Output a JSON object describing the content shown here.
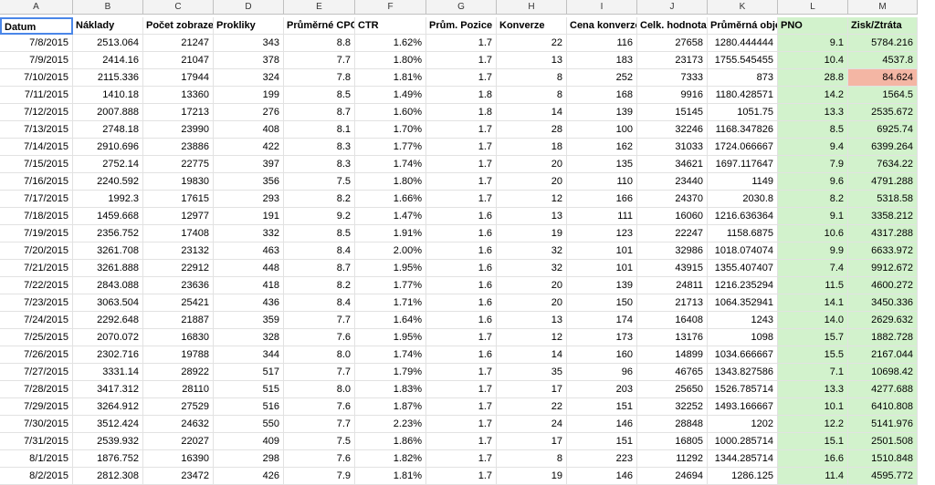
{
  "column_letters": [
    "A",
    "B",
    "C",
    "D",
    "E",
    "F",
    "G",
    "H",
    "I",
    "J",
    "K",
    "L",
    "M"
  ],
  "headers": [
    "Datum",
    "Náklady",
    "Počet zobrazení",
    "Prokliky",
    "Průměrné CPC",
    "CTR",
    "Prům. Pozice",
    "Konverze",
    "Cena konverze",
    "Celk. hodnota konverzí",
    "Průměrná objednávka",
    "PNO",
    "Zisk/Ztráta"
  ],
  "rows": [
    [
      "7/8/2015",
      "2513.064",
      "21247",
      "343",
      "8.8",
      "1.62%",
      "1.7",
      "22",
      "116",
      "27658",
      "1280.444444",
      "9.1",
      "5784.216"
    ],
    [
      "7/9/2015",
      "2414.16",
      "21047",
      "378",
      "7.7",
      "1.80%",
      "1.7",
      "13",
      "183",
      "23173",
      "1755.545455",
      "10.4",
      "4537.8"
    ],
    [
      "7/10/2015",
      "2115.336",
      "17944",
      "324",
      "7.8",
      "1.81%",
      "1.7",
      "8",
      "252",
      "7333",
      "873",
      "28.8",
      "84.624"
    ],
    [
      "7/11/2015",
      "1410.18",
      "13360",
      "199",
      "8.5",
      "1.49%",
      "1.8",
      "8",
      "168",
      "9916",
      "1180.428571",
      "14.2",
      "1564.5"
    ],
    [
      "7/12/2015",
      "2007.888",
      "17213",
      "276",
      "8.7",
      "1.60%",
      "1.8",
      "14",
      "139",
      "15145",
      "1051.75",
      "13.3",
      "2535.672"
    ],
    [
      "7/13/2015",
      "2748.18",
      "23990",
      "408",
      "8.1",
      "1.70%",
      "1.7",
      "28",
      "100",
      "32246",
      "1168.347826",
      "8.5",
      "6925.74"
    ],
    [
      "7/14/2015",
      "2910.696",
      "23886",
      "422",
      "8.3",
      "1.77%",
      "1.7",
      "18",
      "162",
      "31033",
      "1724.066667",
      "9.4",
      "6399.264"
    ],
    [
      "7/15/2015",
      "2752.14",
      "22775",
      "397",
      "8.3",
      "1.74%",
      "1.7",
      "20",
      "135",
      "34621",
      "1697.117647",
      "7.9",
      "7634.22"
    ],
    [
      "7/16/2015",
      "2240.592",
      "19830",
      "356",
      "7.5",
      "1.80%",
      "1.7",
      "20",
      "110",
      "23440",
      "1149",
      "9.6",
      "4791.288"
    ],
    [
      "7/17/2015",
      "1992.3",
      "17615",
      "293",
      "8.2",
      "1.66%",
      "1.7",
      "12",
      "166",
      "24370",
      "2030.8",
      "8.2",
      "5318.58"
    ],
    [
      "7/18/2015",
      "1459.668",
      "12977",
      "191",
      "9.2",
      "1.47%",
      "1.6",
      "13",
      "111",
      "16060",
      "1216.636364",
      "9.1",
      "3358.212"
    ],
    [
      "7/19/2015",
      "2356.752",
      "17408",
      "332",
      "8.5",
      "1.91%",
      "1.6",
      "19",
      "123",
      "22247",
      "1158.6875",
      "10.6",
      "4317.288"
    ],
    [
      "7/20/2015",
      "3261.708",
      "23132",
      "463",
      "8.4",
      "2.00%",
      "1.6",
      "32",
      "101",
      "32986",
      "1018.074074",
      "9.9",
      "6633.972"
    ],
    [
      "7/21/2015",
      "3261.888",
      "22912",
      "448",
      "8.7",
      "1.95%",
      "1.6",
      "32",
      "101",
      "43915",
      "1355.407407",
      "7.4",
      "9912.672"
    ],
    [
      "7/22/2015",
      "2843.088",
      "23636",
      "418",
      "8.2",
      "1.77%",
      "1.6",
      "20",
      "139",
      "24811",
      "1216.235294",
      "11.5",
      "4600.272"
    ],
    [
      "7/23/2015",
      "3063.504",
      "25421",
      "436",
      "8.4",
      "1.71%",
      "1.6",
      "20",
      "150",
      "21713",
      "1064.352941",
      "14.1",
      "3450.336"
    ],
    [
      "7/24/2015",
      "2292.648",
      "21887",
      "359",
      "7.7",
      "1.64%",
      "1.6",
      "13",
      "174",
      "16408",
      "1243",
      "14.0",
      "2629.632"
    ],
    [
      "7/25/2015",
      "2070.072",
      "16830",
      "328",
      "7.6",
      "1.95%",
      "1.7",
      "12",
      "173",
      "13176",
      "1098",
      "15.7",
      "1882.728"
    ],
    [
      "7/26/2015",
      "2302.716",
      "19788",
      "344",
      "8.0",
      "1.74%",
      "1.6",
      "14",
      "160",
      "14899",
      "1034.666667",
      "15.5",
      "2167.044"
    ],
    [
      "7/27/2015",
      "3331.14",
      "28922",
      "517",
      "7.7",
      "1.79%",
      "1.7",
      "35",
      "96",
      "46765",
      "1343.827586",
      "7.1",
      "10698.42"
    ],
    [
      "7/28/2015",
      "3417.312",
      "28110",
      "515",
      "8.0",
      "1.83%",
      "1.7",
      "17",
      "203",
      "25650",
      "1526.785714",
      "13.3",
      "4277.688"
    ],
    [
      "7/29/2015",
      "3264.912",
      "27529",
      "516",
      "7.6",
      "1.87%",
      "1.7",
      "22",
      "151",
      "32252",
      "1493.166667",
      "10.1",
      "6410.808"
    ],
    [
      "7/30/2015",
      "3512.424",
      "24632",
      "550",
      "7.7",
      "2.23%",
      "1.7",
      "24",
      "146",
      "28848",
      "1202",
      "12.2",
      "5141.976"
    ],
    [
      "7/31/2015",
      "2539.932",
      "22027",
      "409",
      "7.5",
      "1.86%",
      "1.7",
      "17",
      "151",
      "16805",
      "1000.285714",
      "15.1",
      "2501.508"
    ],
    [
      "8/1/2015",
      "1876.752",
      "16390",
      "298",
      "7.6",
      "1.82%",
      "1.7",
      "8",
      "223",
      "11292",
      "1344.285714",
      "16.6",
      "1510.848"
    ],
    [
      "8/2/2015",
      "2812.308",
      "23472",
      "426",
      "7.9",
      "1.81%",
      "1.7",
      "19",
      "146",
      "24694",
      "1286.125",
      "11.4",
      "4595.772"
    ]
  ],
  "colors": {
    "green_fill": "#d2f2cc",
    "red_fill": "#f4b6a4",
    "selection": "#4a86e8"
  }
}
